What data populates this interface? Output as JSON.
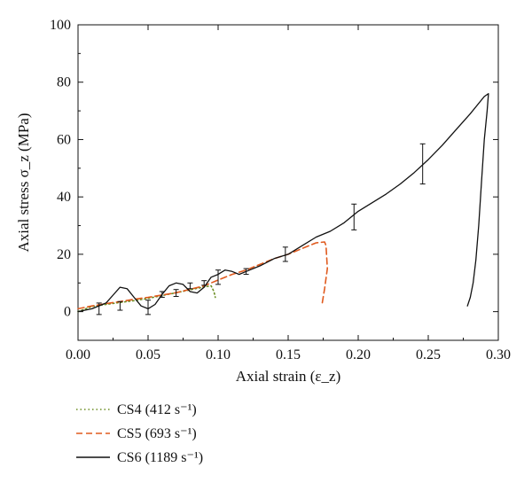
{
  "chart_data": {
    "type": "line",
    "xlabel": "Axial strain (ε_z)",
    "ylabel": "Axial stress σ_z (MPa)",
    "xlim": [
      0,
      0.3
    ],
    "ylim": [
      -10,
      100
    ],
    "xticks": [
      "0.00",
      "0.05",
      "0.10",
      "0.15",
      "0.20",
      "0.25",
      "0.30"
    ],
    "yticks": [
      "0",
      "20",
      "40",
      "60",
      "80",
      "100"
    ],
    "grid": false,
    "legend_position": "below-left",
    "series": [
      {
        "name": "CS4 (412 s⁻¹)",
        "color": "#6b8e23",
        "style": "dotted",
        "points": [
          [
            0.0,
            0.0
          ],
          [
            0.01,
            1.8
          ],
          [
            0.02,
            2.5
          ],
          [
            0.03,
            3.2
          ],
          [
            0.04,
            3.8
          ],
          [
            0.05,
            4.6
          ],
          [
            0.06,
            5.6
          ],
          [
            0.07,
            6.6
          ],
          [
            0.08,
            7.6
          ],
          [
            0.09,
            8.6
          ],
          [
            0.095,
            9.0
          ],
          [
            0.097,
            7.0
          ],
          [
            0.098,
            5.0
          ]
        ]
      },
      {
        "name": "CS5 (693 s⁻¹)",
        "color": "#e05a1e",
        "style": "dashed",
        "points": [
          [
            0.0,
            1.0
          ],
          [
            0.01,
            2.0
          ],
          [
            0.02,
            2.8
          ],
          [
            0.03,
            3.5
          ],
          [
            0.04,
            4.3
          ],
          [
            0.05,
            5.0
          ],
          [
            0.06,
            5.8
          ],
          [
            0.07,
            6.6
          ],
          [
            0.08,
            7.8
          ],
          [
            0.09,
            9.0
          ],
          [
            0.1,
            11.0
          ],
          [
            0.11,
            13.0
          ],
          [
            0.12,
            14.5
          ],
          [
            0.13,
            16.5
          ],
          [
            0.14,
            18.5
          ],
          [
            0.15,
            20.0
          ],
          [
            0.16,
            22.0
          ],
          [
            0.17,
            24.0
          ],
          [
            0.176,
            24.3
          ],
          [
            0.177,
            23.0
          ],
          [
            0.178,
            15.0
          ],
          [
            0.176,
            8.0
          ],
          [
            0.174,
            2.0
          ]
        ]
      },
      {
        "name": "CS6 (1189 s⁻¹)",
        "color": "#111111",
        "style": "solid",
        "points": [
          [
            0.0,
            0.0
          ],
          [
            0.01,
            1.0
          ],
          [
            0.02,
            3.0
          ],
          [
            0.03,
            8.5
          ],
          [
            0.035,
            8.0
          ],
          [
            0.04,
            5.0
          ],
          [
            0.045,
            2.0
          ],
          [
            0.05,
            1.0
          ],
          [
            0.055,
            2.5
          ],
          [
            0.06,
            6.0
          ],
          [
            0.065,
            9.0
          ],
          [
            0.07,
            10.0
          ],
          [
            0.075,
            9.5
          ],
          [
            0.08,
            7.0
          ],
          [
            0.085,
            6.5
          ],
          [
            0.09,
            8.5
          ],
          [
            0.095,
            12.0
          ],
          [
            0.1,
            13.0
          ],
          [
            0.105,
            14.5
          ],
          [
            0.11,
            14.0
          ],
          [
            0.115,
            13.0
          ],
          [
            0.12,
            14.0
          ],
          [
            0.13,
            16.0
          ],
          [
            0.14,
            18.5
          ],
          [
            0.15,
            20.0
          ],
          [
            0.16,
            23.0
          ],
          [
            0.17,
            26.0
          ],
          [
            0.18,
            28.0
          ],
          [
            0.19,
            31.0
          ],
          [
            0.2,
            35.0
          ],
          [
            0.21,
            38.0
          ],
          [
            0.22,
            41.0
          ],
          [
            0.23,
            44.5
          ],
          [
            0.24,
            48.5
          ],
          [
            0.25,
            53.0
          ],
          [
            0.26,
            58.0
          ],
          [
            0.27,
            63.5
          ],
          [
            0.28,
            69.0
          ],
          [
            0.29,
            75.0
          ],
          [
            0.293,
            76.0
          ],
          [
            0.292,
            70.0
          ],
          [
            0.29,
            60.0
          ],
          [
            0.288,
            45.0
          ],
          [
            0.286,
            30.0
          ],
          [
            0.284,
            18.0
          ],
          [
            0.282,
            10.0
          ],
          [
            0.28,
            5.0
          ],
          [
            0.278,
            2.0
          ]
        ]
      }
    ],
    "error_bars": [
      {
        "x": 0.015,
        "y": 1.0,
        "err": 2.0
      },
      {
        "x": 0.03,
        "y": 2.0,
        "err": 1.5
      },
      {
        "x": 0.05,
        "y": 1.5,
        "err": 2.5
      },
      {
        "x": 0.06,
        "y": 6.0,
        "err": 1.0
      },
      {
        "x": 0.07,
        "y": 6.5,
        "err": 1.2
      },
      {
        "x": 0.08,
        "y": 9.0,
        "err": 1.0
      },
      {
        "x": 0.09,
        "y": 10.0,
        "err": 0.8
      },
      {
        "x": 0.1,
        "y": 12.0,
        "err": 2.5
      },
      {
        "x": 0.12,
        "y": 14.0,
        "err": 1.0
      },
      {
        "x": 0.148,
        "y": 20.0,
        "err": 2.5
      },
      {
        "x": 0.197,
        "y": 33.0,
        "err": 4.5
      },
      {
        "x": 0.246,
        "y": 51.5,
        "err": 7.0
      }
    ]
  }
}
